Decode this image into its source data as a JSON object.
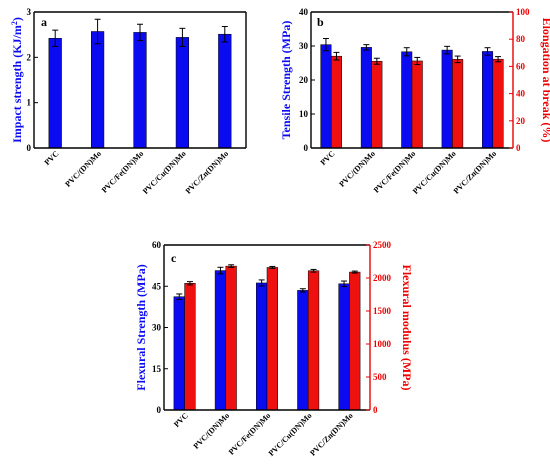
{
  "colors": {
    "blue": "#0b0bf2",
    "red": "#ef1010",
    "axis_black": "#000000",
    "axis_red": "#ee0000"
  },
  "chart_data": [
    {
      "panel": "a",
      "type": "bar",
      "categories": [
        "PVC",
        "PVC/(DN)Mo",
        "PVC/Fe(DN)Mo",
        "PVC/Cu(DN)Mo",
        "PVC/Zn(DN)Mo"
      ],
      "series": [
        {
          "color": "#0b0bf2",
          "values": [
            2.42,
            2.57,
            2.55,
            2.44,
            2.51
          ],
          "errors": [
            0.18,
            0.27,
            0.18,
            0.2,
            0.17
          ]
        }
      ],
      "ylabel": "Impact strength (KJ/m²)",
      "ylabel_main": "Impact strength (KJ/m",
      "ylabel_sup": "2",
      "ylabel_close": ")",
      "ylim": [
        0,
        3
      ],
      "yticks": [
        "0",
        "1",
        "2",
        "3"
      ],
      "grid": false
    },
    {
      "panel": "b",
      "type": "bar",
      "categories": [
        "PVC",
        "PVC/(DN)Mo",
        "PVC/Fe(DN)Mo",
        "PVC/Cu(DN)Mo",
        "PVC/Zn(DN)Mo"
      ],
      "series": [
        {
          "color": "#0b0bf2",
          "axis": "left",
          "values": [
            30.4,
            29.6,
            28.3,
            28.8,
            28.4
          ],
          "errors": [
            1.8,
            0.8,
            1.2,
            1.1,
            1.1
          ]
        },
        {
          "color": "#ef1010",
          "axis": "right",
          "values": [
            67.5,
            63.8,
            64.0,
            65.2,
            65.3
          ],
          "errors": [
            2.8,
            2.2,
            2.6,
            2.4,
            1.9
          ]
        }
      ],
      "ylabel": "Tensile Strength (MPa)",
      "ylim": [
        0,
        40
      ],
      "yticks": [
        "0",
        "10",
        "20",
        "30",
        "40"
      ],
      "y2label": "Elongation at break (%)",
      "y2lim": [
        0,
        100
      ],
      "y2ticks": [
        "0",
        "20",
        "40",
        "60",
        "80",
        "100"
      ],
      "grid": false
    },
    {
      "panel": "c",
      "type": "bar",
      "categories": [
        "PVC",
        "PVC/(DN)Mo",
        "PVC/Fe(DN)Mo",
        "PVC/Cu(DN)Mo",
        "PVC/Zn(DN)Mo"
      ],
      "series": [
        {
          "color": "#0b0bf2",
          "axis": "left",
          "values": [
            41.2,
            50.7,
            46.2,
            43.5,
            45.9
          ],
          "errors": [
            1.0,
            1.2,
            1.1,
            0.6,
            1.0
          ]
        },
        {
          "color": "#ef1010",
          "axis": "right",
          "values": [
            1920,
            2180,
            2160,
            2110,
            2090
          ],
          "errors": [
            25,
            20,
            15,
            20,
            15
          ]
        }
      ],
      "ylabel": "Flexural Strength (MPa)",
      "ylim": [
        0,
        60
      ],
      "yticks": [
        "0",
        "15",
        "30",
        "45",
        "60"
      ],
      "y2label": "Flexural modulus (MPa)",
      "y2lim": [
        0,
        2500
      ],
      "y2ticks": [
        "0",
        "500",
        "1000",
        "1500",
        "2000",
        "2500"
      ],
      "grid": false
    }
  ]
}
